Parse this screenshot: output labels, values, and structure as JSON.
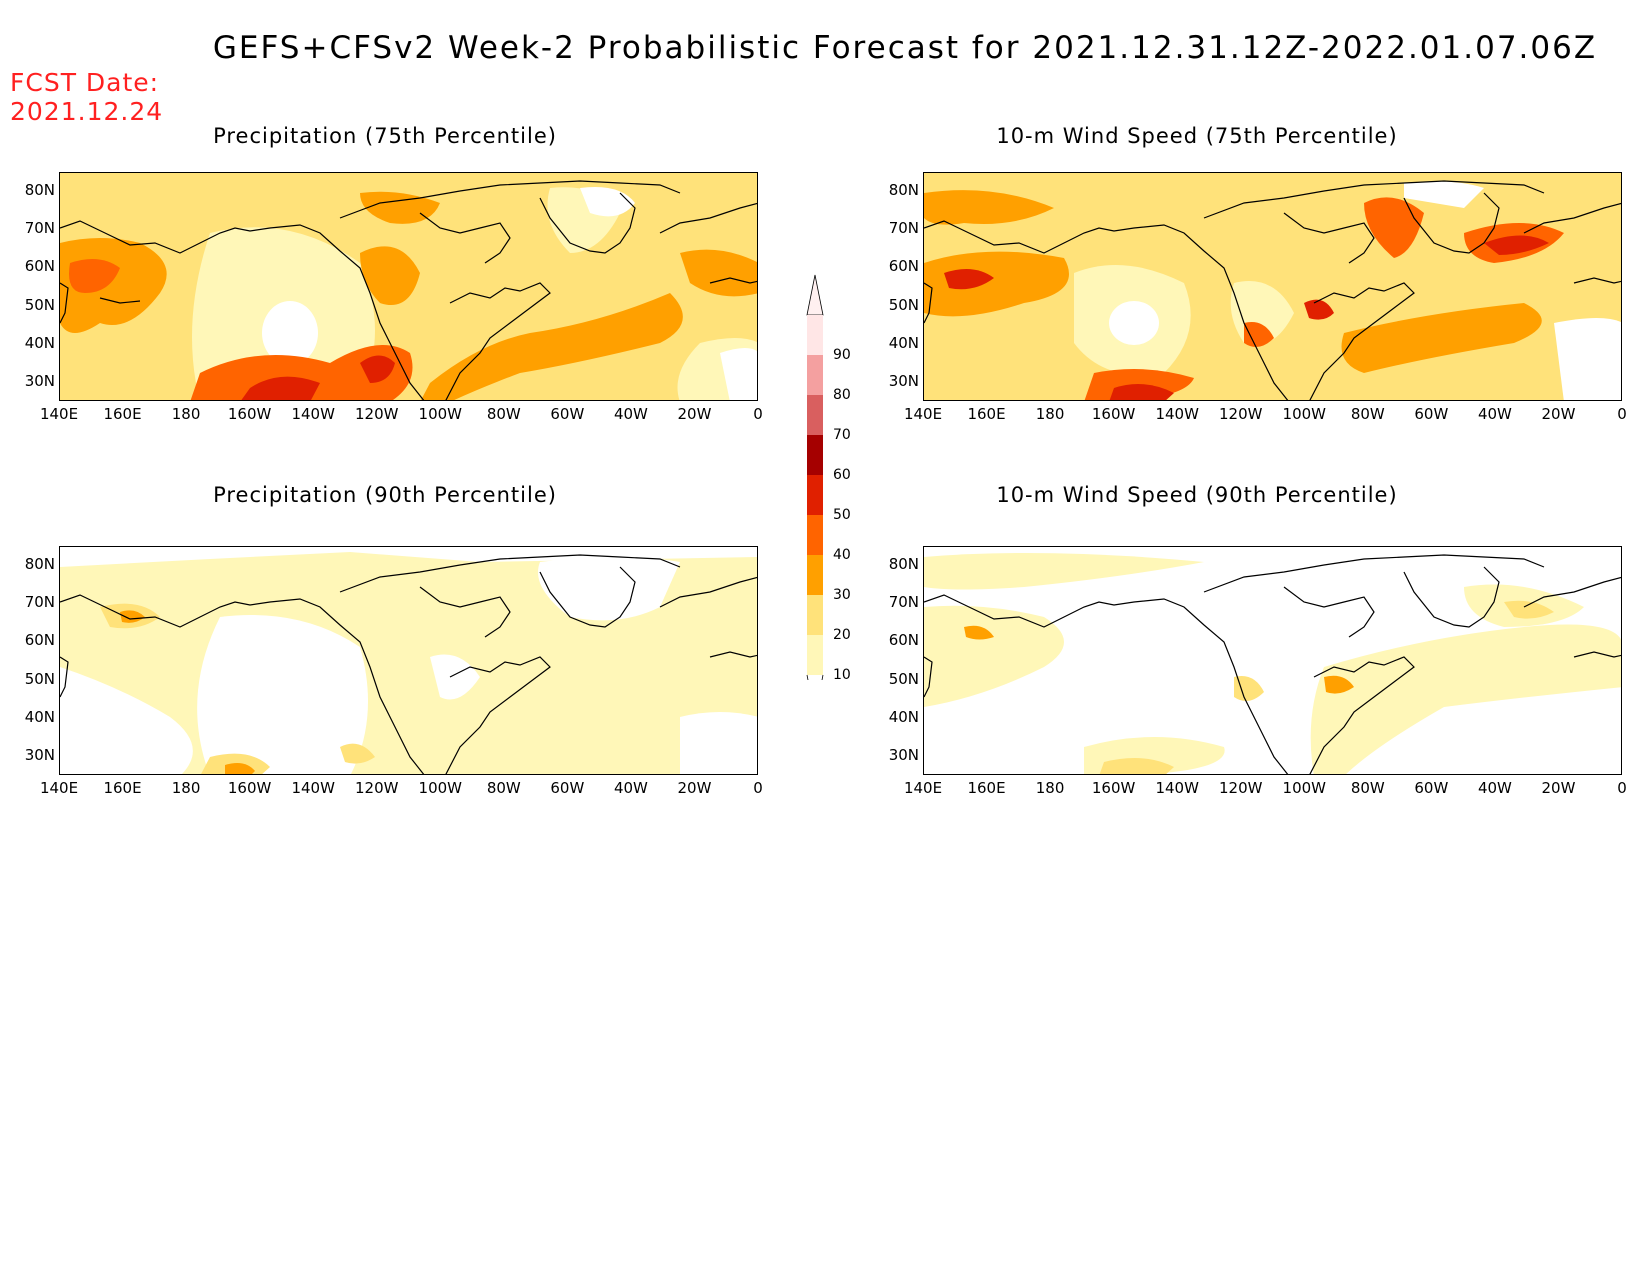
{
  "title": "GEFS+CFSv2 Week-2 Probabilistic Forecast for 2021.12.31.12Z-2022.01.07.06Z",
  "fcst_label": "FCST Date:",
  "fcst_date": "2021.12.24",
  "panels": [
    {
      "id": "precip75",
      "title": "Precipitation (75th Percentile)"
    },
    {
      "id": "wind75",
      "title": "10-m Wind Speed (75th Percentile)"
    },
    {
      "id": "precip90",
      "title": "Precipitation (90th Percentile)"
    },
    {
      "id": "wind90",
      "title": "10-m Wind Speed (90th Percentile)"
    }
  ],
  "lon_ticks": [
    "140E",
    "160E",
    "180",
    "160W",
    "140W",
    "120W",
    "100W",
    "80W",
    "60W",
    "40W",
    "20W",
    "0"
  ],
  "lat_ticks": [
    "80N",
    "70N",
    "60N",
    "50N",
    "40N",
    "30N"
  ],
  "colorbar": {
    "labels": [
      "90",
      "80",
      "70",
      "60",
      "50",
      "40",
      "30",
      "20",
      "10"
    ],
    "colors": [
      "#ffe6e6",
      "#f4a0a0",
      "#d95f5f",
      "#a50000",
      "#e02000",
      "#ff6400",
      "#ffa000",
      "#ffe27a",
      "#fff7b8"
    ]
  },
  "palette": {
    "white": "#ffffff",
    "light_yellow": "#fff7b8",
    "yellow": "#ffe27a",
    "orange": "#ffa000",
    "dark_orange": "#ff6400",
    "red": "#e02000",
    "dark_red": "#a50000"
  }
}
